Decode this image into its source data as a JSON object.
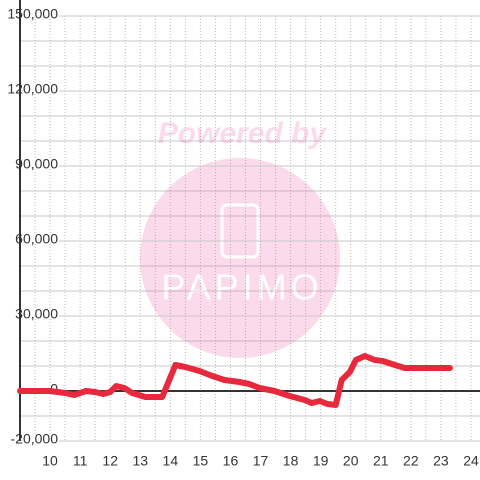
{
  "chart_data": {
    "type": "line",
    "watermark": [
      "Powered by",
      "PAPIMO"
    ],
    "x": [
      9.0,
      10.0,
      10.5,
      10.8,
      11.2,
      11.5,
      11.77,
      12.0,
      12.2,
      12.47,
      12.73,
      13.17,
      13.73,
      14.17,
      14.5,
      14.97,
      15.4,
      15.8,
      16.3,
      16.63,
      16.97,
      17.47,
      17.97,
      18.47,
      18.7,
      18.97,
      19.23,
      19.5,
      19.7,
      19.97,
      20.17,
      20.47,
      20.8,
      21.07,
      21.47,
      21.8,
      22.3,
      23.3
    ],
    "series": [
      {
        "color": "#e8283c",
        "values": [
          0,
          0,
          -800,
          -1600,
          0,
          -400,
          -1200,
          -400,
          2000,
          1200,
          -800,
          -2400,
          -2400,
          10400,
          9600,
          8000,
          6000,
          4400,
          3600,
          2800,
          1200,
          0,
          -2000,
          -3600,
          -4800,
          -4000,
          -5200,
          -5600,
          4400,
          7600,
          12400,
          14000,
          12400,
          12000,
          10400,
          9200,
          9200,
          9200
        ]
      }
    ],
    "xlim": [
      9,
      24.3
    ],
    "xticks": [
      10,
      11,
      12,
      13,
      14,
      15,
      16,
      17,
      18,
      19,
      20,
      21,
      22,
      23,
      24
    ],
    "ylim": [
      -20000,
      150000
    ],
    "yticks": [
      {
        "value": -20000,
        "label": "-20,000"
      },
      0,
      {
        "value": 30000,
        "label": "30,000"
      },
      {
        "value": 60000,
        "label": "60,000"
      },
      {
        "value": 90000,
        "label": "90,000"
      },
      {
        "value": 120000,
        "label": "120,000"
      },
      {
        "value": 150000,
        "label": "150,000"
      }
    ],
    "grid": true
  }
}
